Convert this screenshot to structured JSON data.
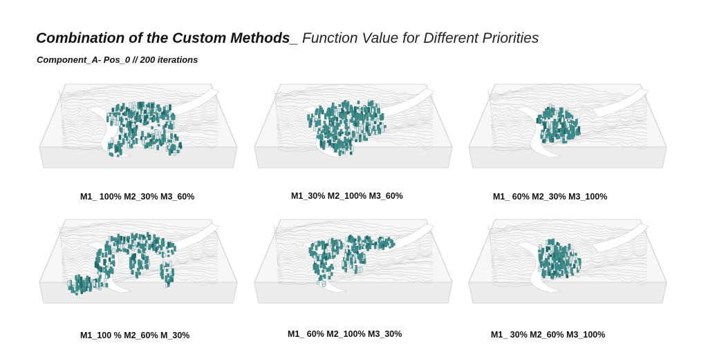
{
  "title": {
    "bold": "Combination of the Custom Methods_",
    "light": "Function Value for Different Priorities"
  },
  "subtitle": "Component_A- Pos_0 // 200 iterations",
  "panels": [
    {
      "caption": "M1_ 100% M2_30% M3_60%",
      "pattern": "branching"
    },
    {
      "caption": "M1_30% M2_100% M3_60%",
      "pattern": "dense-cluster"
    },
    {
      "caption": "M1_ 60% M2_30% M3_100%",
      "pattern": "compact-round"
    },
    {
      "caption": "M1_100 % M2_60% M_30%",
      "pattern": "spread-branching"
    },
    {
      "caption": "M1_ 60% M2_100% M3_30%",
      "pattern": "elongated-cluster"
    },
    {
      "caption": "M1_ 30% M2_60% M3_100%",
      "pattern": "compact-round"
    }
  ],
  "colors": {
    "voxel": "#3f8f8f",
    "voxel_dark": "#1f6a6a",
    "terrain_line": "#bdbdbd",
    "box": "#e6e6e6"
  }
}
